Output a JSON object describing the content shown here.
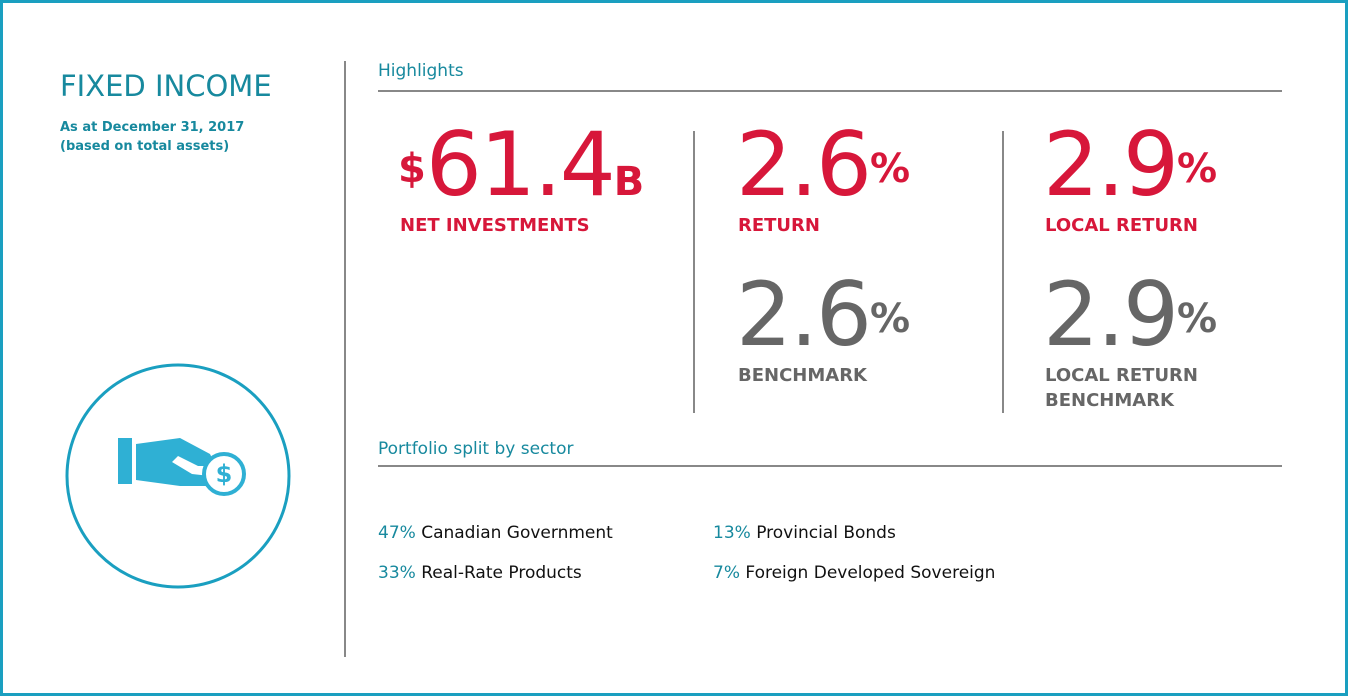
{
  "header": {
    "title": "FIXED INCOME",
    "subtitle_lines": [
      "As at December 31, 2017",
      "(based on total assets)"
    ]
  },
  "highlights": {
    "title": "Highlights",
    "items": [
      {
        "prefix": "$",
        "value": "61.4",
        "suffix": "B",
        "label": "NET INVESTMENTS"
      },
      {
        "value": "2.6",
        "suffix": "%",
        "label": "RETURN",
        "benchmark": {
          "value": "2.6",
          "suffix": "%",
          "label": "BENCHMARK"
        }
      },
      {
        "value": "2.9",
        "suffix": "%",
        "label": "LOCAL RETURN",
        "benchmark": {
          "value": "2.9",
          "suffix": "%",
          "label": "LOCAL RETURN BENCHMARK"
        }
      }
    ]
  },
  "portfolio": {
    "title": "Portfolio split by sector",
    "items": [
      {
        "share": "47%",
        "sector": "Canadian Government"
      },
      {
        "share": "33%",
        "sector": "Real-Rate Products"
      },
      {
        "share": "13%",
        "sector": "Provincial Bonds"
      },
      {
        "share": "7%",
        "sector": "Foreign Developed Sovereign"
      }
    ]
  }
}
